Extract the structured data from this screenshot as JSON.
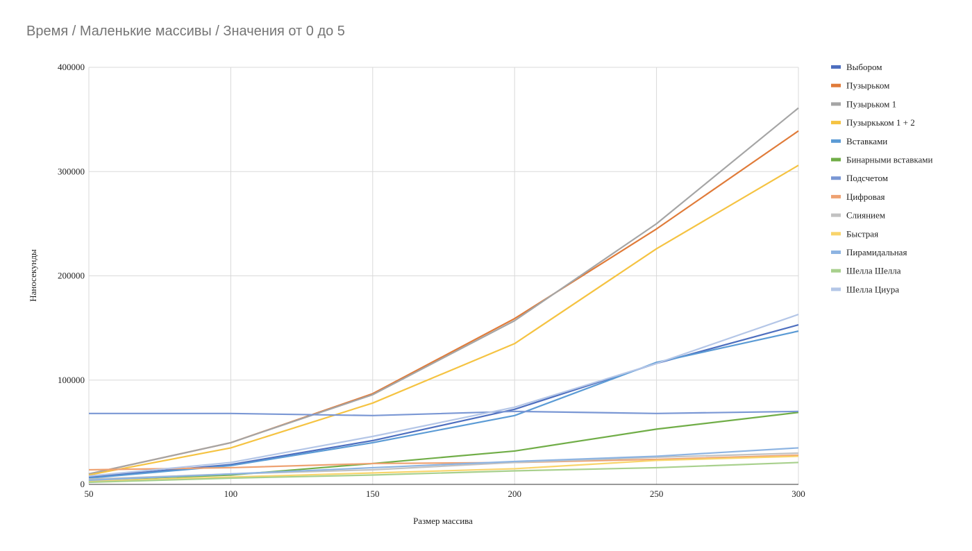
{
  "chart_data": {
    "type": "line",
    "title": "Время / Маленькие массивы / Значения от 0 до 5",
    "xlabel": "Размер массива",
    "ylabel": "Наносекунды",
    "x": [
      50,
      100,
      150,
      200,
      250,
      300
    ],
    "xticks": [
      "50",
      "100",
      "150",
      "200",
      "250",
      "300"
    ],
    "yticks": [
      "0",
      "100000",
      "200000",
      "300000",
      "400000"
    ],
    "xlim": [
      50,
      300
    ],
    "ylim": [
      0,
      400000
    ],
    "grid": true,
    "legend_position": "right",
    "series": [
      {
        "name": "Выбором",
        "color": "#4e6fbf",
        "values": [
          7000,
          19000,
          42000,
          72000,
          116000,
          153000
        ]
      },
      {
        "name": "Пузырьком",
        "color": "#e07b39",
        "values": [
          10000,
          40000,
          87000,
          159000,
          245000,
          339000
        ]
      },
      {
        "name": "Пузырьком 1",
        "color": "#a5a5a5",
        "values": [
          10000,
          40000,
          86000,
          157000,
          250000,
          361000
        ]
      },
      {
        "name": "Пузыркьком 1 + 2",
        "color": "#f5c342",
        "values": [
          9000,
          35000,
          78000,
          135000,
          226000,
          306000
        ]
      },
      {
        "name": "Вставками",
        "color": "#5b9bd5",
        "values": [
          6000,
          18000,
          40000,
          66000,
          117000,
          147000
        ]
      },
      {
        "name": "Бинарными вставками",
        "color": "#70ad47",
        "values": [
          4000,
          9000,
          20000,
          32000,
          53000,
          69000
        ]
      },
      {
        "name": "Подсчетом",
        "color": "#7a97d4",
        "values": [
          68000,
          68000,
          66000,
          70000,
          68000,
          70000
        ]
      },
      {
        "name": "Цифровая",
        "color": "#eea272",
        "values": [
          14000,
          16000,
          20000,
          21000,
          24000,
          28000
        ]
      },
      {
        "name": "Слиянием",
        "color": "#c2c2c2",
        "values": [
          5000,
          10000,
          14000,
          21000,
          26000,
          30000
        ]
      },
      {
        "name": "Быстрая",
        "color": "#f9d46b",
        "values": [
          3000,
          7000,
          11000,
          15000,
          23000,
          27000
        ]
      },
      {
        "name": "Пирамидальная",
        "color": "#8db4e2",
        "values": [
          4000,
          10000,
          16000,
          22000,
          27000,
          35000
        ]
      },
      {
        "name": "Шелла Шелла",
        "color": "#a8d08d",
        "values": [
          2000,
          6000,
          9000,
          13000,
          16000,
          21000
        ]
      },
      {
        "name": "Шелла Циура",
        "color": "#b4c6e7",
        "values": [
          8000,
          21000,
          46000,
          74000,
          116000,
          163000
        ]
      }
    ]
  }
}
